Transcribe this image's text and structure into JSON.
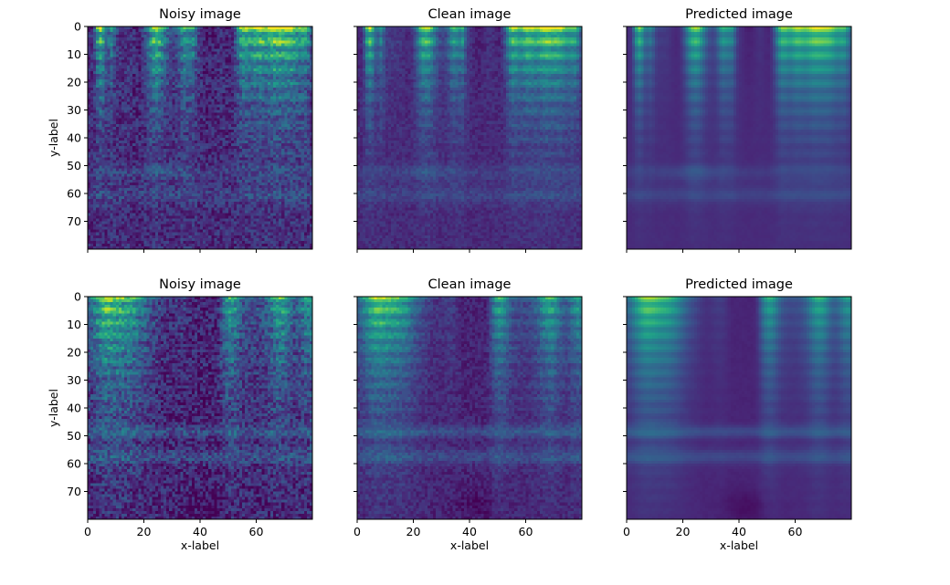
{
  "figure": {
    "colormap": "viridis",
    "cmap_stops": [
      "#440154",
      "#482878",
      "#3e4989",
      "#31688e",
      "#26828e",
      "#1f9e89",
      "#35b779",
      "#6ece58",
      "#b5de2b",
      "#fde725"
    ],
    "axis_color": "#000000"
  },
  "chart_data": [
    {
      "type": "heatmap",
      "title": "Noisy image",
      "xlabel": "",
      "ylabel": "y-label",
      "xlim": [
        0,
        80
      ],
      "ylim": [
        80,
        0
      ],
      "xticks": [
        0,
        20,
        40,
        60
      ],
      "yticks": [
        0,
        10,
        20,
        30,
        40,
        50,
        60,
        70
      ],
      "show_xticklabels": false,
      "show_yticklabels": true,
      "pattern": "A",
      "noise": 0.55,
      "smooth": 0.0
    },
    {
      "type": "heatmap",
      "title": "Clean image",
      "xlabel": "",
      "ylabel": "",
      "xlim": [
        0,
        80
      ],
      "ylim": [
        80,
        0
      ],
      "xticks": [
        0,
        20,
        40,
        60
      ],
      "yticks": [
        0,
        10,
        20,
        30,
        40,
        50,
        60,
        70
      ],
      "show_xticklabels": false,
      "show_yticklabels": false,
      "pattern": "A",
      "noise": 0.25,
      "smooth": 0.0
    },
    {
      "type": "heatmap",
      "title": "Predicted image",
      "xlabel": "",
      "ylabel": "",
      "xlim": [
        0,
        80
      ],
      "ylim": [
        80,
        0
      ],
      "xticks": [
        0,
        20,
        40,
        60
      ],
      "yticks": [
        0,
        10,
        20,
        30,
        40,
        50,
        60,
        70
      ],
      "show_xticklabels": false,
      "show_yticklabels": false,
      "pattern": "A",
      "noise": 0.08,
      "smooth": 0.6
    },
    {
      "type": "heatmap",
      "title": "Noisy image",
      "xlabel": "x-label",
      "ylabel": "y-label",
      "xlim": [
        0,
        80
      ],
      "ylim": [
        80,
        0
      ],
      "xticks": [
        0,
        20,
        40,
        60
      ],
      "yticks": [
        0,
        10,
        20,
        30,
        40,
        50,
        60,
        70
      ],
      "show_xticklabels": true,
      "show_yticklabels": true,
      "pattern": "B",
      "noise": 0.65,
      "smooth": 0.0
    },
    {
      "type": "heatmap",
      "title": "Clean image",
      "xlabel": "x-label",
      "ylabel": "",
      "xlim": [
        0,
        80
      ],
      "ylim": [
        80,
        0
      ],
      "xticks": [
        0,
        20,
        40,
        60
      ],
      "yticks": [
        0,
        10,
        20,
        30,
        40,
        50,
        60,
        70
      ],
      "show_xticklabels": true,
      "show_yticklabels": false,
      "pattern": "B",
      "noise": 0.3,
      "smooth": 0.0
    },
    {
      "type": "heatmap",
      "title": "Predicted image",
      "xlabel": "x-label",
      "ylabel": "",
      "xlim": [
        0,
        80
      ],
      "ylim": [
        80,
        0
      ],
      "xticks": [
        0,
        20,
        40,
        60
      ],
      "yticks": [
        0,
        10,
        20,
        30,
        40,
        50,
        60,
        70
      ],
      "show_xticklabels": true,
      "show_yticklabels": false,
      "pattern": "B",
      "noise": 0.08,
      "smooth": 0.6
    }
  ]
}
